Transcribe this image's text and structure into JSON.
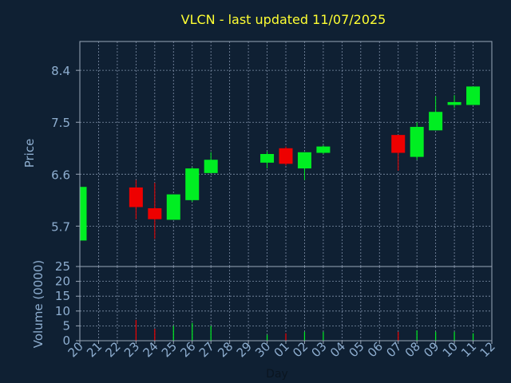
{
  "chart_data": {
    "type": "candlestick",
    "title": "VLCN - last updated 11/07/2025",
    "xlabel": "Day",
    "price_panel": {
      "ylabel": "Price",
      "ylim": [
        5.0,
        8.9
      ],
      "yticks": [
        5.7,
        6.6,
        7.5,
        8.4
      ],
      "ytick_labels": [
        "5.7",
        "6.6",
        "7.5",
        "8.4"
      ]
    },
    "volume_panel": {
      "ylabel": "Volume (0000)",
      "ylim": [
        0,
        25
      ],
      "yticks": [
        0,
        5,
        10,
        15,
        20,
        25
      ],
      "ytick_labels": [
        "0",
        "5",
        "10",
        "15",
        "20",
        "25"
      ]
    },
    "x_tick_labels": [
      "20",
      "21",
      "22",
      "23",
      "24",
      "25",
      "26",
      "27",
      "28",
      "29",
      "30",
      "01",
      "02",
      "03",
      "04",
      "05",
      "06",
      "07",
      "08",
      "09",
      "10",
      "11",
      "12"
    ],
    "candles": [
      {
        "day": "20",
        "open": 5.45,
        "close": 6.38,
        "high": 6.38,
        "low": 5.45
      },
      {
        "day": "23",
        "open": 6.37,
        "close": 6.03,
        "high": 6.5,
        "low": 5.82
      },
      {
        "day": "24",
        "open": 6.01,
        "close": 5.82,
        "high": 6.45,
        "low": 5.48
      },
      {
        "day": "25",
        "open": 5.81,
        "close": 6.25,
        "high": 6.25,
        "low": 5.81
      },
      {
        "day": "26",
        "open": 6.15,
        "close": 6.7,
        "high": 6.72,
        "low": 6.12
      },
      {
        "day": "27",
        "open": 6.62,
        "close": 6.85,
        "high": 6.98,
        "low": 6.62
      },
      {
        "day": "30",
        "open": 6.8,
        "close": 6.95,
        "high": 6.99,
        "low": 6.7
      },
      {
        "day": "01",
        "open": 7.05,
        "close": 6.78,
        "high": 7.08,
        "low": 6.75
      },
      {
        "day": "02",
        "open": 6.7,
        "close": 6.98,
        "high": 6.98,
        "low": 6.5
      },
      {
        "day": "03",
        "open": 6.97,
        "close": 7.08,
        "high": 7.1,
        "low": 6.95
      },
      {
        "day": "07",
        "open": 7.28,
        "close": 6.97,
        "high": 7.28,
        "low": 6.66
      },
      {
        "day": "08",
        "open": 6.9,
        "close": 7.42,
        "high": 7.5,
        "low": 6.85
      },
      {
        "day": "09",
        "open": 7.36,
        "close": 7.68,
        "high": 7.95,
        "low": 7.36
      },
      {
        "day": "10",
        "open": 7.8,
        "close": 7.85,
        "high": 7.97,
        "low": 7.75
      },
      {
        "day": "11",
        "open": 7.8,
        "close": 8.12,
        "high": 8.12,
        "low": 7.8
      }
    ],
    "volumes": [
      {
        "day": "20",
        "value": 0,
        "direction": "up"
      },
      {
        "day": "23",
        "value": 7,
        "direction": "down"
      },
      {
        "day": "24",
        "value": 4,
        "direction": "down"
      },
      {
        "day": "25",
        "value": 5,
        "direction": "up"
      },
      {
        "day": "26",
        "value": 6,
        "direction": "up"
      },
      {
        "day": "27",
        "value": 5,
        "direction": "up"
      },
      {
        "day": "30",
        "value": 2,
        "direction": "up"
      },
      {
        "day": "01",
        "value": 2.5,
        "direction": "down"
      },
      {
        "day": "02",
        "value": 3,
        "direction": "up"
      },
      {
        "day": "03",
        "value": 3,
        "direction": "up"
      },
      {
        "day": "07",
        "value": 3,
        "direction": "down"
      },
      {
        "day": "08",
        "value": 3.5,
        "direction": "up"
      },
      {
        "day": "09",
        "value": 3,
        "direction": "up"
      },
      {
        "day": "10",
        "value": 3,
        "direction": "up"
      },
      {
        "day": "11",
        "value": 2.5,
        "direction": "up"
      }
    ],
    "grid": true,
    "colors": {
      "background": "#0f2033",
      "title": "#ffff33",
      "axis_text": "#8eaed0",
      "grid": "#7f8fa8",
      "up": "#00ee22",
      "down": "#ee0000",
      "frame": "#9aa7b8"
    }
  }
}
